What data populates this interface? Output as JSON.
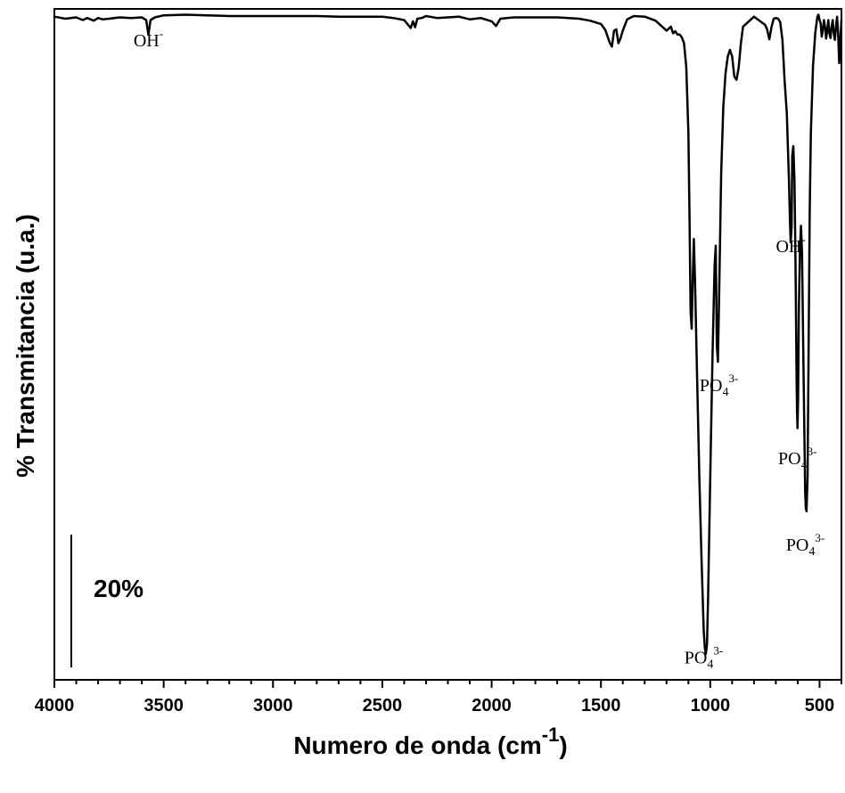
{
  "chart_data": {
    "type": "line",
    "xlabel": {
      "main": "Numero de onda (cm",
      "sup": "-1",
      "close": ")"
    },
    "ylabel": "% Transmitancia (u.a.)",
    "xlim": [
      4000,
      400
    ],
    "x_reversed": true,
    "ylim": [
      0,
      100
    ],
    "x_ticks": [
      4000,
      3500,
      3000,
      2500,
      2000,
      1500,
      1000,
      500
    ],
    "x_tick_labels": [
      "4000",
      "3500",
      "3000",
      "2500",
      "2000",
      "1500",
      "1000",
      "500"
    ],
    "grid": false,
    "legend": "none",
    "scale_bar": {
      "label": "20%",
      "span": 20
    },
    "annotations": [
      {
        "base": "OH",
        "sub": "",
        "sup": "-",
        "x": 3570,
        "y": 96
      },
      {
        "base": "OH",
        "sub": "",
        "sup": "-",
        "x": 632,
        "y": 65
      },
      {
        "base": "PO",
        "sub": "4",
        "sup": "3-",
        "x": 960,
        "y": 44
      },
      {
        "base": "PO",
        "sub": "4",
        "sup": "3-",
        "x": 601,
        "y": 33
      },
      {
        "base": "PO",
        "sub": "4",
        "sup": "3-",
        "x": 565,
        "y": 20
      },
      {
        "base": "PO",
        "sub": "4",
        "sup": "3-",
        "x": 1030,
        "y": 3
      }
    ],
    "series": [
      {
        "color": "#000000",
        "x": [
          4000,
          3950,
          3900,
          3870,
          3850,
          3820,
          3800,
          3780,
          3750,
          3700,
          3650,
          3600,
          3580,
          3570,
          3560,
          3540,
          3500,
          3400,
          3300,
          3200,
          3100,
          3000,
          2900,
          2800,
          2700,
          2600,
          2500,
          2450,
          2400,
          2370,
          2360,
          2350,
          2340,
          2320,
          2300,
          2250,
          2200,
          2150,
          2100,
          2050,
          2000,
          1980,
          1960,
          1900,
          1800,
          1700,
          1600,
          1550,
          1500,
          1480,
          1460,
          1450,
          1440,
          1430,
          1420,
          1410,
          1400,
          1380,
          1350,
          1300,
          1250,
          1220,
          1200,
          1180,
          1170,
          1160,
          1150,
          1140,
          1130,
          1120,
          1110,
          1100,
          1095,
          1090,
          1085,
          1080,
          1075,
          1070,
          1060,
          1050,
          1040,
          1030,
          1025,
          1020,
          1015,
          1010,
          1000,
          990,
          980,
          975,
          970,
          965,
          960,
          950,
          940,
          930,
          920,
          910,
          900,
          890,
          880,
          870,
          860,
          850,
          800,
          750,
          740,
          730,
          720,
          710,
          700,
          690,
          680,
          670,
          660,
          650,
          640,
          635,
          632,
          628,
          625,
          620,
          615,
          610,
          605,
          603,
          601,
          598,
          595,
          590,
          585,
          580,
          575,
          570,
          566,
          563,
          560,
          555,
          550,
          545,
          540,
          530,
          520,
          510,
          505,
          500,
          495,
          490,
          485,
          480,
          475,
          470,
          465,
          460,
          455,
          450,
          445,
          440,
          435,
          430,
          425,
          420,
          415,
          410,
          405,
          400
        ],
        "y": [
          99.5,
          99.2,
          99.4,
          99.0,
          99.3,
          98.9,
          99.3,
          99.1,
          99.2,
          99.4,
          99.3,
          99.4,
          99.0,
          96.8,
          99.0,
          99.4,
          99.7,
          99.8,
          99.7,
          99.6,
          99.6,
          99.6,
          99.6,
          99.6,
          99.5,
          99.5,
          99.5,
          99.3,
          99.0,
          97.8,
          98.8,
          97.9,
          99.2,
          99.3,
          99.6,
          99.3,
          99.4,
          99.5,
          99.1,
          99.3,
          98.8,
          98.1,
          99.2,
          99.4,
          99.4,
          99.4,
          99.2,
          98.9,
          98.4,
          97.5,
          95.6,
          95.0,
          97.4,
          97.6,
          95.5,
          96.3,
          97.4,
          99.1,
          99.6,
          99.5,
          98.9,
          98.0,
          97.4,
          98.0,
          97.0,
          97.3,
          96.8,
          96.8,
          96.4,
          95.5,
          92.0,
          82.0,
          70.0,
          55.0,
          52.5,
          60.0,
          66.0,
          60.0,
          45.0,
          30.0,
          18.0,
          7.0,
          4.5,
          3.5,
          5.0,
          12.0,
          30.0,
          48.0,
          62.0,
          65.0,
          50.0,
          47.5,
          56.0,
          76.0,
          86.0,
          91.0,
          93.5,
          94.5,
          93.5,
          90.5,
          90.0,
          91.8,
          95.5,
          98.0,
          99.5,
          98.3,
          97.6,
          96.1,
          97.9,
          99.2,
          99.3,
          99.2,
          98.7,
          96.0,
          90.0,
          85.0,
          75.0,
          68.0,
          65.5,
          68.0,
          78.5,
          80.0,
          75.0,
          62.0,
          45.0,
          40.0,
          37.5,
          42.0,
          55.0,
          64.0,
          68.0,
          64.0,
          50.0,
          38.0,
          28.0,
          25.5,
          25.0,
          30.0,
          50.0,
          70.0,
          82.0,
          92.0,
          97.0,
          99.5,
          99.8,
          99.0,
          98.5,
          96.5,
          97.5,
          99.0,
          98.0,
          96.2,
          97.5,
          99.0,
          97.0,
          96.3,
          98.0,
          99.0,
          97.0,
          96.0,
          98.0,
          99.5,
          97.0,
          92.5,
          96.0,
          99.0
        ]
      }
    ]
  }
}
